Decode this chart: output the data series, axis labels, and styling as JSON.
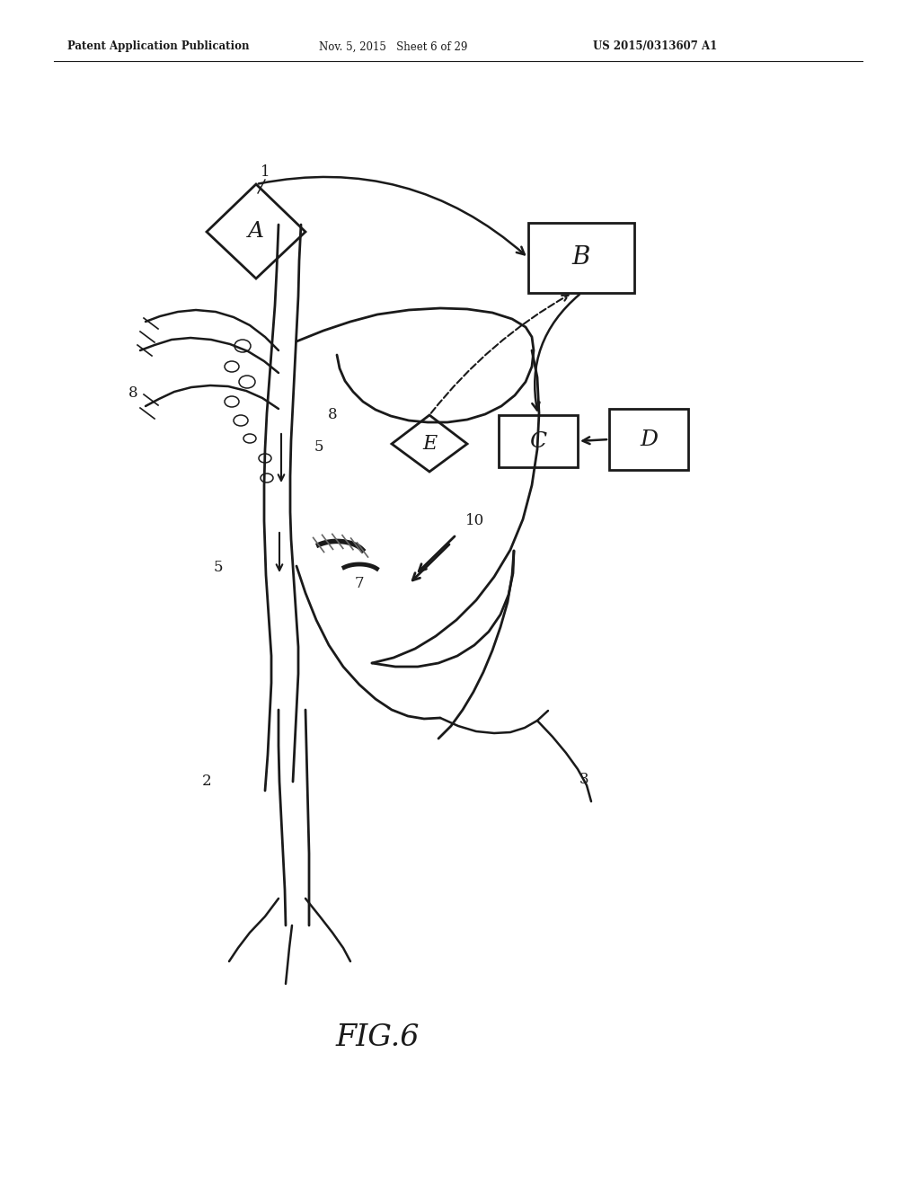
{
  "header_left": "Patent Application Publication",
  "header_middle": "Nov. 5, 2015   Sheet 6 of 29",
  "header_right": "US 2015/0313607 A1",
  "figure_label": "FIG.6",
  "background_color": "#ffffff",
  "ink_color": "#1a1a1a",
  "fig_width": 10.24,
  "fig_height": 13.2,
  "dpi": 100
}
